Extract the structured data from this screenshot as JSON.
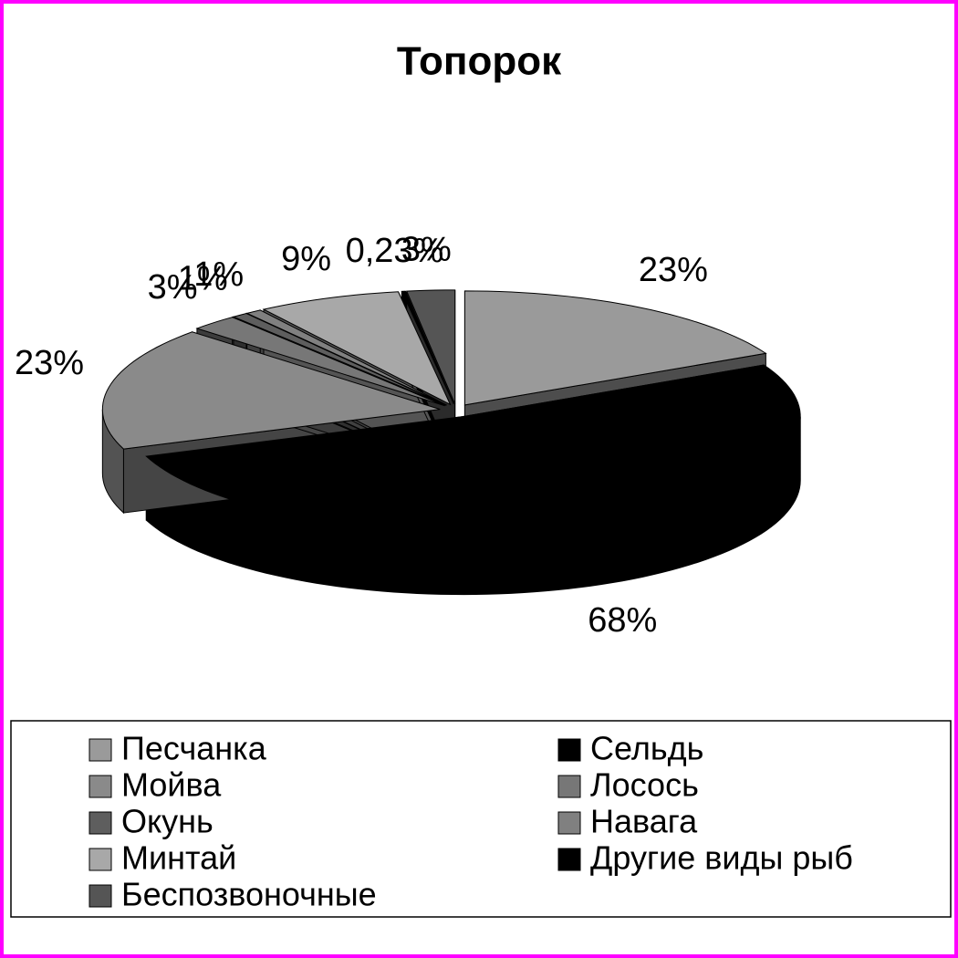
{
  "chart_data": {
    "type": "pie",
    "title": "Топорок",
    "categories": [
      "Песчанка",
      "Сельдь",
      "Мойва",
      "Лосось",
      "Окунь",
      "Навага",
      "Минтай",
      "Другие виды рыб",
      "Беспозвоночные"
    ],
    "values": [
      23,
      68,
      23,
      3,
      1,
      1,
      9,
      0.23,
      3
    ],
    "value_labels": [
      "23%",
      "68%",
      "23%",
      "3%",
      "1%",
      "1%",
      "9%",
      "0,23%",
      "3%"
    ],
    "colors": [
      "#9a9a9a",
      "#000000",
      "#8a8a8a",
      "#777777",
      "#5e5e5e",
      "#808080",
      "#a8a8a8",
      "#000000",
      "#555555"
    ],
    "legend": "bottom"
  }
}
